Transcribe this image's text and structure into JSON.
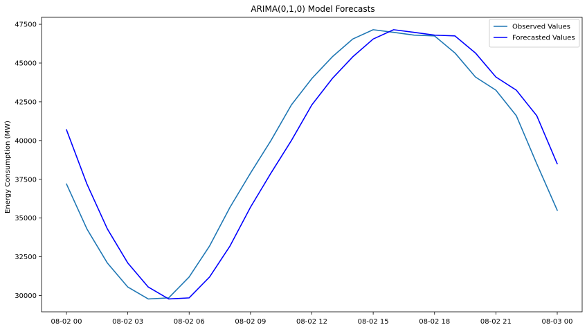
{
  "chart_data": {
    "type": "line",
    "title": "ARIMA(0,1,0) Model Forecasts",
    "xlabel": "",
    "ylabel": "Energy Consumption (MW)",
    "x_unit": "hour",
    "x_start_label": "08-02 00",
    "x": [
      "08-02 00",
      "08-02 01",
      "08-02 02",
      "08-02 03",
      "08-02 04",
      "08-02 05",
      "08-02 06",
      "08-02 07",
      "08-02 08",
      "08-02 09",
      "08-02 10",
      "08-02 11",
      "08-02 12",
      "08-02 13",
      "08-02 14",
      "08-02 15",
      "08-02 16",
      "08-02 17",
      "08-02 18",
      "08-02 19",
      "08-02 20",
      "08-02 21",
      "08-02 22",
      "08-02 23",
      "08-03 00"
    ],
    "xticks": [
      "08-02 00",
      "08-02 03",
      "08-02 06",
      "08-02 09",
      "08-02 12",
      "08-02 15",
      "08-02 18",
      "08-02 21",
      "08-03 00"
    ],
    "ylim": [
      28950,
      47950
    ],
    "yticks": [
      30000,
      32500,
      35000,
      37500,
      40000,
      42500,
      45000,
      47500
    ],
    "ytick_labels": [
      "30000",
      "32500",
      "35000",
      "37500",
      "40000",
      "42500",
      "45000",
      "47500"
    ],
    "grid": false,
    "legend_position": "top-right",
    "series": [
      {
        "name": "Observed Values",
        "color": "#1f77b4",
        "values": [
          37200,
          34300,
          32100,
          30550,
          29780,
          29850,
          31200,
          33200,
          35700,
          37900,
          40000,
          42300,
          44000,
          45400,
          46550,
          47150,
          46980,
          46800,
          46750,
          45650,
          44100,
          43250,
          41600,
          38500,
          35500
        ]
      },
      {
        "name": "Forecasted Values",
        "color": "#0000ff",
        "values": [
          40700,
          37200,
          34300,
          32100,
          30550,
          29780,
          29850,
          31200,
          33200,
          35700,
          37900,
          40000,
          42300,
          44000,
          45400,
          46550,
          47150,
          46980,
          46800,
          46750,
          45650,
          44100,
          43250,
          41600,
          38500
        ]
      }
    ]
  }
}
